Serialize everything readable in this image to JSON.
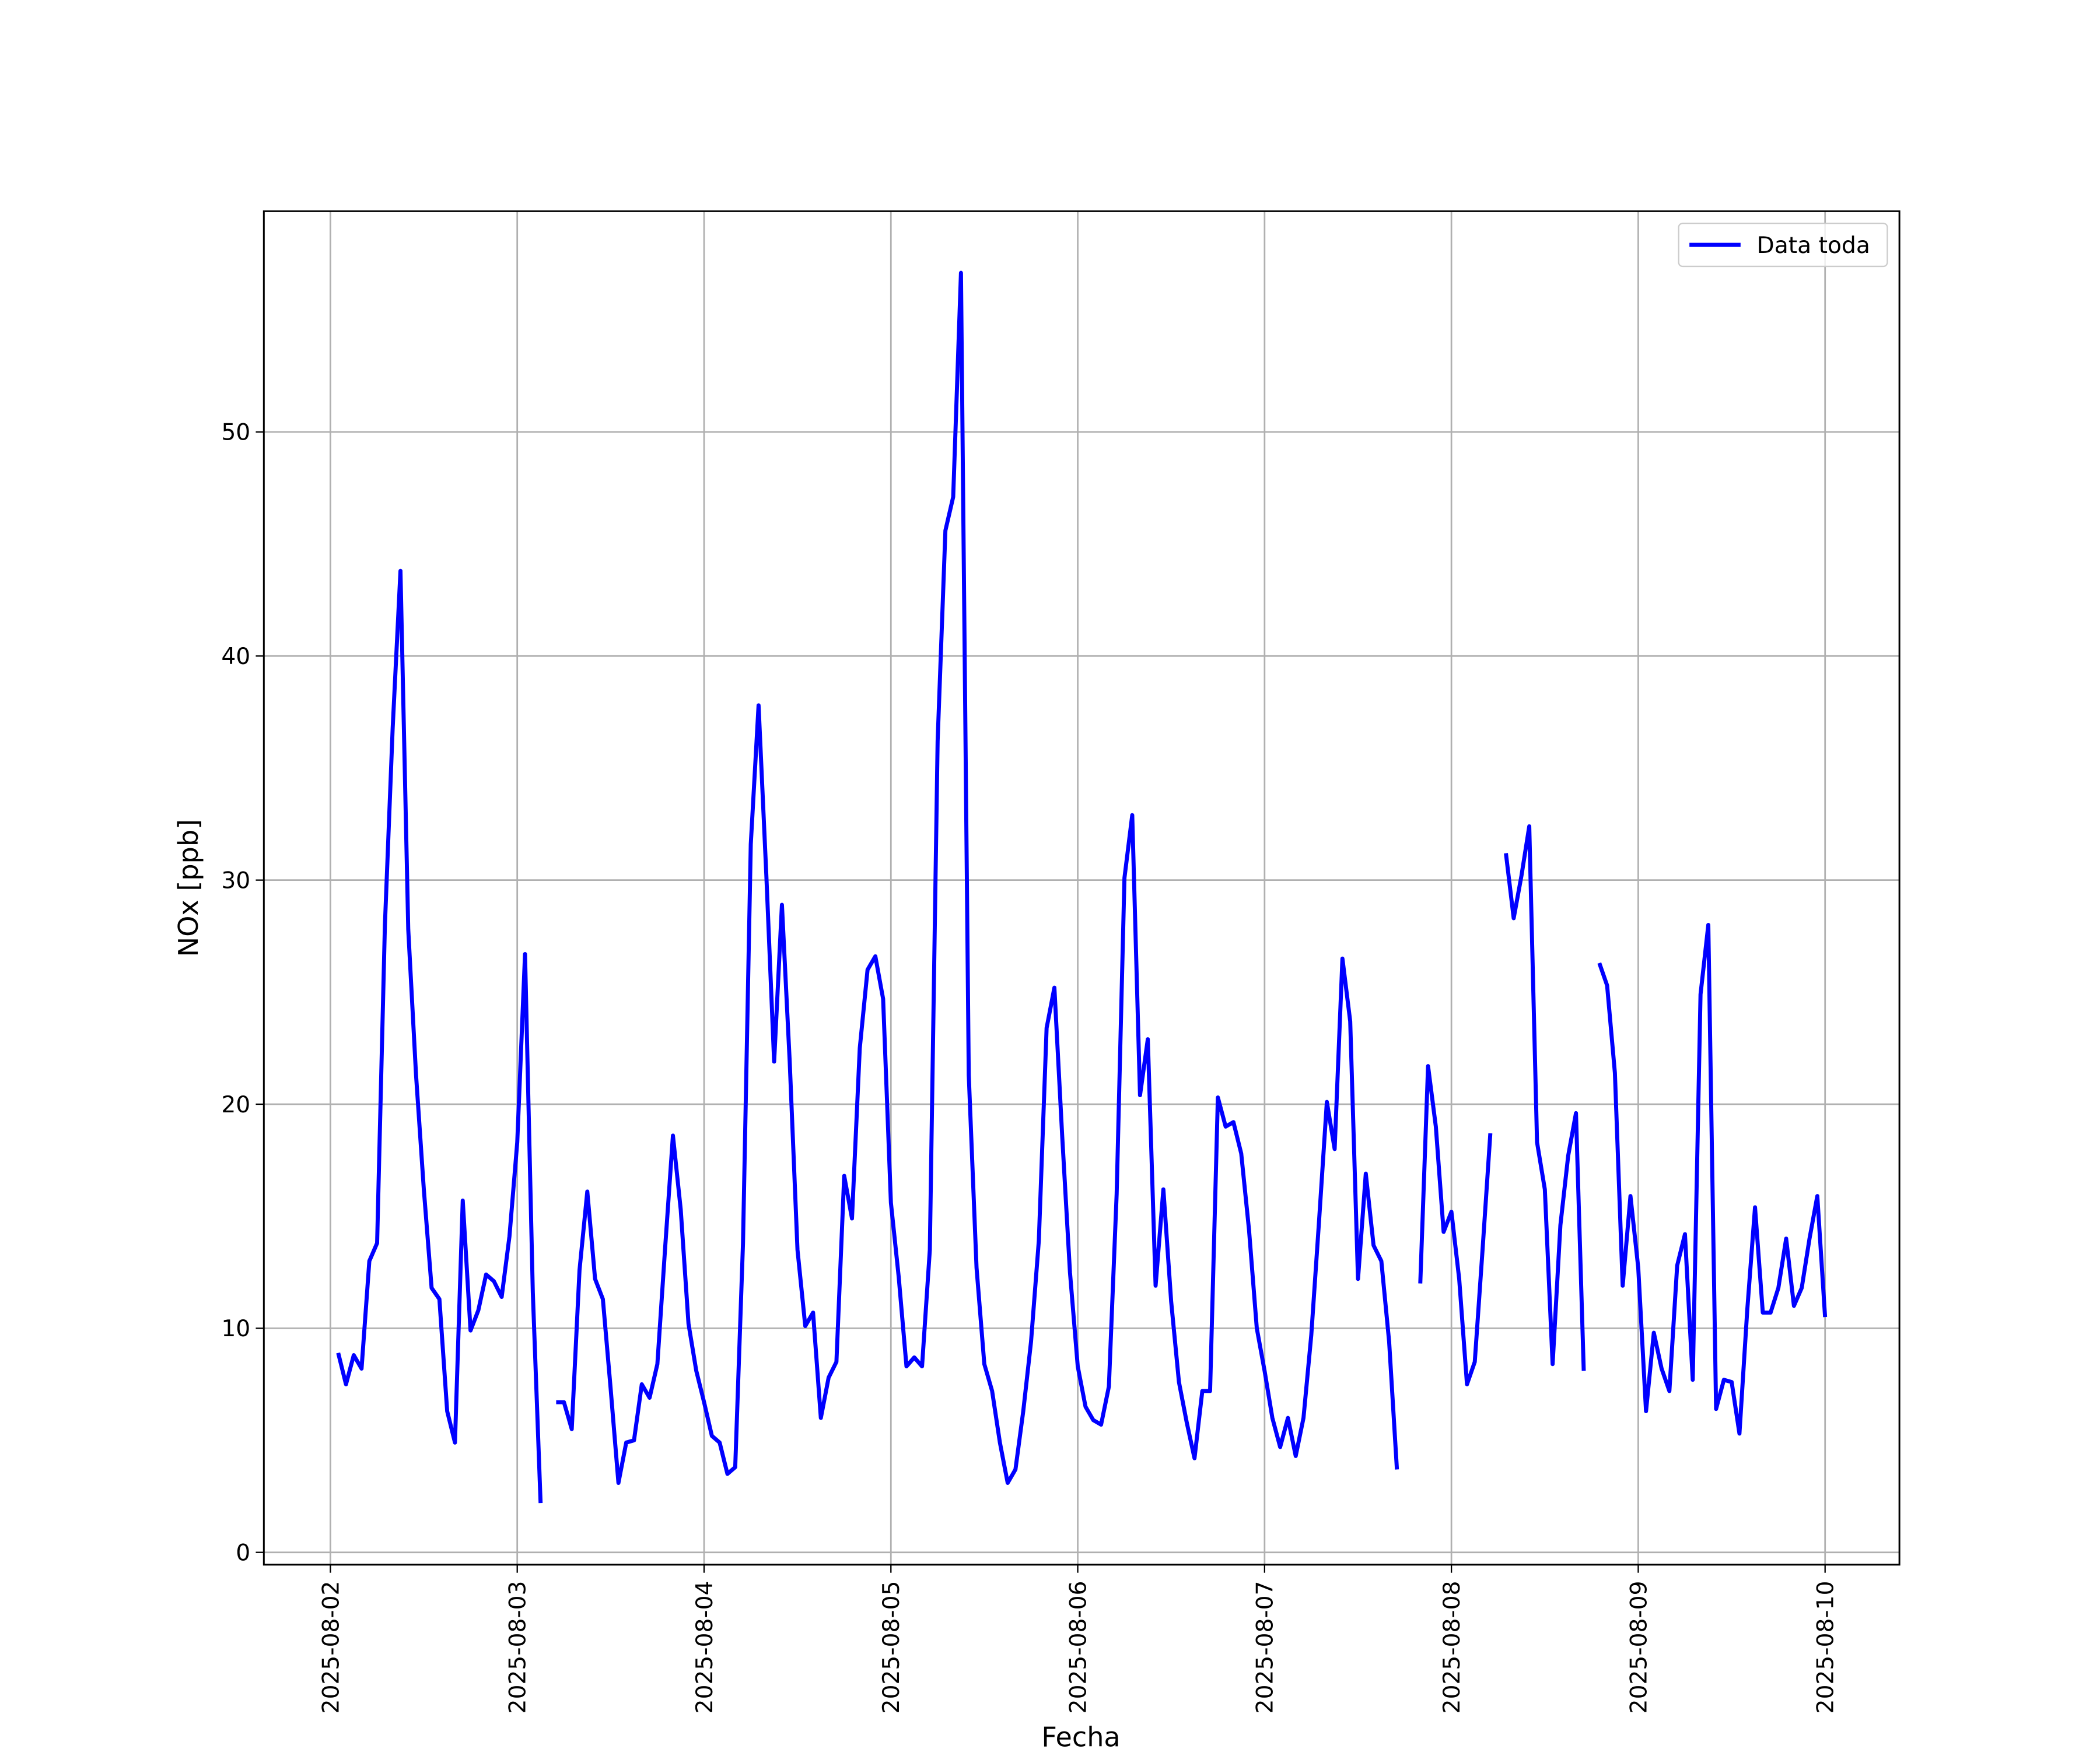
{
  "chart_data": {
    "type": "line",
    "xlabel": "Fecha",
    "ylabel": "NOx [ppb]",
    "x": [
      "2025-08-02 01:00",
      "2025-08-02 02:00",
      "2025-08-02 03:00",
      "2025-08-02 04:00",
      "2025-08-02 05:00",
      "2025-08-02 06:00",
      "2025-08-02 07:00",
      "2025-08-02 08:00",
      "2025-08-02 09:00",
      "2025-08-02 10:00",
      "2025-08-02 11:00",
      "2025-08-02 12:00",
      "2025-08-02 13:00",
      "2025-08-02 14:00",
      "2025-08-02 15:00",
      "2025-08-02 16:00",
      "2025-08-02 17:00",
      "2025-08-02 18:00",
      "2025-08-02 19:00",
      "2025-08-02 20:00",
      "2025-08-02 21:00",
      "2025-08-02 22:00",
      "2025-08-02 23:00",
      "2025-08-03 00:00",
      "2025-08-03 01:00",
      "2025-08-03 02:00",
      "2025-08-03 03:00",
      "2025-08-03 04:00",
      "2025-08-03 05:00",
      "2025-08-03 06:00",
      "2025-08-03 07:00",
      "2025-08-03 08:00",
      "2025-08-03 09:00",
      "2025-08-03 10:00",
      "2025-08-03 11:00",
      "2025-08-03 12:00",
      "2025-08-03 13:00",
      "2025-08-03 14:00",
      "2025-08-03 15:00",
      "2025-08-03 16:00",
      "2025-08-03 17:00",
      "2025-08-03 18:00",
      "2025-08-03 19:00",
      "2025-08-03 20:00",
      "2025-08-03 21:00",
      "2025-08-03 22:00",
      "2025-08-03 23:00",
      "2025-08-04 00:00",
      "2025-08-04 01:00",
      "2025-08-04 02:00",
      "2025-08-04 03:00",
      "2025-08-04 04:00",
      "2025-08-04 05:00",
      "2025-08-04 06:00",
      "2025-08-04 07:00",
      "2025-08-04 08:00",
      "2025-08-04 09:00",
      "2025-08-04 10:00",
      "2025-08-04 11:00",
      "2025-08-04 12:00",
      "2025-08-04 13:00",
      "2025-08-04 14:00",
      "2025-08-04 15:00",
      "2025-08-04 16:00",
      "2025-08-04 17:00",
      "2025-08-04 18:00",
      "2025-08-04 19:00",
      "2025-08-04 20:00",
      "2025-08-04 21:00",
      "2025-08-04 22:00",
      "2025-08-04 23:00",
      "2025-08-05 00:00",
      "2025-08-05 01:00",
      "2025-08-05 02:00",
      "2025-08-05 03:00",
      "2025-08-05 04:00",
      "2025-08-05 05:00",
      "2025-08-05 06:00",
      "2025-08-05 07:00",
      "2025-08-05 08:00",
      "2025-08-05 09:00",
      "2025-08-05 10:00",
      "2025-08-05 11:00",
      "2025-08-05 12:00",
      "2025-08-05 13:00",
      "2025-08-05 14:00",
      "2025-08-05 15:00",
      "2025-08-05 16:00",
      "2025-08-05 17:00",
      "2025-08-05 18:00",
      "2025-08-05 19:00",
      "2025-08-05 20:00",
      "2025-08-05 21:00",
      "2025-08-05 22:00",
      "2025-08-05 23:00",
      "2025-08-06 00:00",
      "2025-08-06 01:00",
      "2025-08-06 02:00",
      "2025-08-06 03:00",
      "2025-08-06 04:00",
      "2025-08-06 05:00",
      "2025-08-06 06:00",
      "2025-08-06 07:00",
      "2025-08-06 08:00",
      "2025-08-06 09:00",
      "2025-08-06 10:00",
      "2025-08-06 11:00",
      "2025-08-06 12:00",
      "2025-08-06 13:00",
      "2025-08-06 14:00",
      "2025-08-06 15:00",
      "2025-08-06 16:00",
      "2025-08-06 17:00",
      "2025-08-06 18:00",
      "2025-08-06 19:00",
      "2025-08-06 20:00",
      "2025-08-06 21:00",
      "2025-08-06 22:00",
      "2025-08-06 23:00",
      "2025-08-07 00:00",
      "2025-08-07 01:00",
      "2025-08-07 02:00",
      "2025-08-07 03:00",
      "2025-08-07 04:00",
      "2025-08-07 05:00",
      "2025-08-07 06:00",
      "2025-08-07 07:00",
      "2025-08-07 08:00",
      "2025-08-07 09:00",
      "2025-08-07 10:00",
      "2025-08-07 11:00",
      "2025-08-07 12:00",
      "2025-08-07 13:00",
      "2025-08-07 14:00",
      "2025-08-07 15:00",
      "2025-08-07 16:00",
      "2025-08-07 17:00",
      "2025-08-07 18:00",
      "2025-08-07 19:00",
      "2025-08-07 20:00",
      "2025-08-07 21:00",
      "2025-08-07 22:00",
      "2025-08-07 23:00",
      "2025-08-08 00:00",
      "2025-08-08 01:00",
      "2025-08-08 02:00",
      "2025-08-08 03:00",
      "2025-08-08 04:00",
      "2025-08-08 05:00",
      "2025-08-08 06:00",
      "2025-08-08 07:00",
      "2025-08-08 08:00",
      "2025-08-08 09:00",
      "2025-08-08 10:00",
      "2025-08-08 11:00",
      "2025-08-08 12:00",
      "2025-08-08 13:00",
      "2025-08-08 14:00",
      "2025-08-08 15:00",
      "2025-08-08 16:00",
      "2025-08-08 17:00",
      "2025-08-08 18:00",
      "2025-08-08 19:00",
      "2025-08-08 20:00",
      "2025-08-08 21:00",
      "2025-08-08 22:00",
      "2025-08-08 23:00",
      "2025-08-09 00:00",
      "2025-08-09 01:00",
      "2025-08-09 02:00",
      "2025-08-09 03:00",
      "2025-08-09 04:00",
      "2025-08-09 05:00",
      "2025-08-09 06:00",
      "2025-08-09 07:00",
      "2025-08-09 08:00",
      "2025-08-09 09:00",
      "2025-08-09 10:00",
      "2025-08-09 11:00",
      "2025-08-09 12:00",
      "2025-08-09 13:00",
      "2025-08-09 14:00",
      "2025-08-09 15:00",
      "2025-08-09 16:00",
      "2025-08-09 17:00",
      "2025-08-09 18:00",
      "2025-08-09 19:00",
      "2025-08-09 20:00",
      "2025-08-09 21:00",
      "2025-08-09 22:00",
      "2025-08-09 23:00",
      "2025-08-10 00:00"
    ],
    "series": [
      {
        "name": "Data toda",
        "color": "#0000ff",
        "values": [
          8.9,
          7.5,
          8.8,
          8.2,
          13.0,
          13.8,
          28.0,
          36.8,
          43.8,
          27.8,
          21.3,
          16.2,
          11.8,
          11.3,
          6.3,
          4.9,
          15.7,
          9.9,
          10.8,
          12.4,
          12.1,
          11.4,
          14.1,
          18.3,
          26.7,
          11.6,
          2.2,
          null,
          6.7,
          6.7,
          5.5,
          12.6,
          16.1,
          12.2,
          11.3,
          7.3,
          3.1,
          4.9,
          5.0,
          7.5,
          6.9,
          8.4,
          13.6,
          18.6,
          15.3,
          10.2,
          8.1,
          6.7,
          5.2,
          4.9,
          3.5,
          3.8,
          13.8,
          31.6,
          37.8,
          30.2,
          21.9,
          28.9,
          21.9,
          13.5,
          10.1,
          10.7,
          6.0,
          7.8,
          8.5,
          16.8,
          14.9,
          22.5,
          26.0,
          26.6,
          24.7,
          15.6,
          12.3,
          8.3,
          8.7,
          8.3,
          13.5,
          36.2,
          45.6,
          47.1,
          57.1,
          21.3,
          12.7,
          8.4,
          7.2,
          4.9,
          3.1,
          3.7,
          6.3,
          9.4,
          13.9,
          23.4,
          25.2,
          18.6,
          12.5,
          8.3,
          6.5,
          5.9,
          5.7,
          7.4,
          16.0,
          30.1,
          32.9,
          20.4,
          22.9,
          11.9,
          16.2,
          11.2,
          7.6,
          5.8,
          4.2,
          7.2,
          7.2,
          20.3,
          19.0,
          19.2,
          17.8,
          14.4,
          10.0,
          8.1,
          6.0,
          4.7,
          6.0,
          4.3,
          6.0,
          9.7,
          14.8,
          20.1,
          18.0,
          26.5,
          23.7,
          12.2,
          16.9,
          13.7,
          13.0,
          9.4,
          3.7,
          null,
          null,
          12.0,
          21.7,
          19.0,
          14.3,
          15.2,
          12.2,
          7.5,
          8.5,
          13.5,
          18.7,
          null,
          31.2,
          28.3,
          30.2,
          32.4,
          18.3,
          16.2,
          8.4,
          14.6,
          17.7,
          19.6,
          8.1,
          null,
          26.3,
          25.3,
          21.4,
          11.9,
          15.9,
          12.7,
          6.3,
          9.8,
          8.2,
          7.2,
          12.8,
          14.2,
          7.7,
          24.9,
          28.0,
          6.4,
          7.7,
          7.6,
          5.3,
          10.8,
          15.4,
          10.7,
          10.7,
          11.8,
          14.0,
          11.0,
          11.8,
          14.0,
          15.9,
          10.5
        ]
      }
    ],
    "xlim": [
      "2025-08-01 15:27",
      "2025-08-10 09:33"
    ],
    "xticks": [
      "2025-08-02",
      "2025-08-03",
      "2025-08-04",
      "2025-08-05",
      "2025-08-06",
      "2025-08-07",
      "2025-08-08",
      "2025-08-09",
      "2025-08-10"
    ],
    "ylim": [
      -0.55,
      59.85
    ],
    "yticks": [
      0,
      10,
      20,
      30,
      40,
      50
    ],
    "grid": true,
    "legend": "upper right"
  }
}
